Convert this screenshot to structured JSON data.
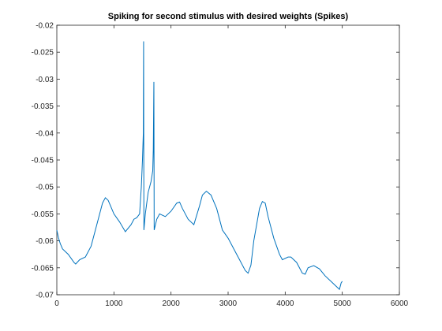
{
  "chart_data": {
    "type": "line",
    "title": "Spiking for second stimulus with desired weights (Spikes)",
    "x": [
      0,
      30,
      60,
      100,
      200,
      300,
      330,
      400,
      500,
      600,
      700,
      800,
      850,
      900,
      1000,
      1100,
      1200,
      1300,
      1350,
      1400,
      1450,
      1480,
      1500,
      1515,
      1520,
      1525,
      1550,
      1600,
      1650,
      1680,
      1690,
      1700,
      1705,
      1750,
      1800,
      1900,
      2000,
      2100,
      2150,
      2200,
      2300,
      2400,
      2500,
      2550,
      2620,
      2700,
      2800,
      2900,
      3000,
      3100,
      3200,
      3300,
      3350,
      3400,
      3450,
      3550,
      3600,
      3650,
      3700,
      3800,
      3900,
      3950,
      4050,
      4100,
      4200,
      4300,
      4350,
      4400,
      4500,
      4600,
      4700,
      4800,
      4900,
      4950,
      4980,
      5000
    ],
    "series": [
      {
        "name": "Spikes",
        "color": "#0072bd",
        "values": [
          -0.058,
          -0.0595,
          -0.0605,
          -0.0615,
          -0.0625,
          -0.064,
          -0.0643,
          -0.0635,
          -0.063,
          -0.061,
          -0.057,
          -0.053,
          -0.052,
          -0.0525,
          -0.055,
          -0.0565,
          -0.0583,
          -0.057,
          -0.056,
          -0.0557,
          -0.055,
          -0.05,
          -0.045,
          -0.04,
          -0.023,
          -0.058,
          -0.055,
          -0.051,
          -0.049,
          -0.047,
          -0.043,
          -0.0305,
          -0.058,
          -0.056,
          -0.055,
          -0.0555,
          -0.0545,
          -0.053,
          -0.0528,
          -0.054,
          -0.056,
          -0.057,
          -0.0535,
          -0.0515,
          -0.0508,
          -0.0515,
          -0.054,
          -0.058,
          -0.0595,
          -0.0615,
          -0.0635,
          -0.0655,
          -0.066,
          -0.0645,
          -0.06,
          -0.054,
          -0.0527,
          -0.053,
          -0.0555,
          -0.0595,
          -0.0625,
          -0.0635,
          -0.063,
          -0.063,
          -0.064,
          -0.066,
          -0.0662,
          -0.065,
          -0.0646,
          -0.0652,
          -0.0665,
          -0.0675,
          -0.0685,
          -0.069,
          -0.0678,
          -0.0675
        ]
      }
    ],
    "xlim": [
      0,
      6000
    ],
    "xticks": [
      0,
      1000,
      2000,
      3000,
      4000,
      5000,
      6000
    ],
    "ylim": [
      -0.07,
      -0.02
    ],
    "yticks": [
      -0.07,
      -0.065,
      -0.06,
      -0.055,
      -0.05,
      -0.045,
      -0.04,
      -0.035,
      -0.03,
      -0.025,
      -0.02
    ],
    "grid": false
  }
}
